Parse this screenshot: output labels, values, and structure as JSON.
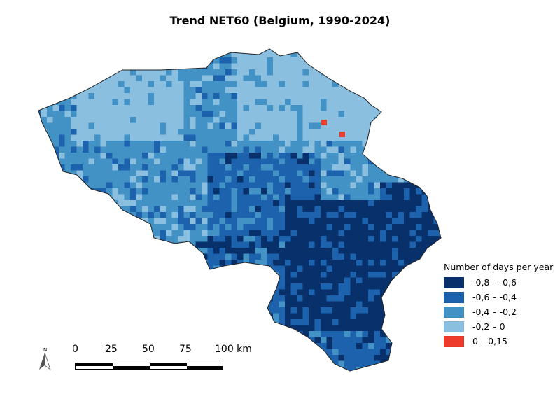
{
  "title": "Trend NET60 (Belgium, 1990-2024)",
  "legend": {
    "title": "Number of days per year",
    "items": [
      {
        "label": "-0,8 – -0,6",
        "color": "#08306b"
      },
      {
        "label": "-0,6 – -0,4",
        "color": "#1c62ad"
      },
      {
        "label": "-0,4 – -0,2",
        "color": "#4292c6"
      },
      {
        "label": "-0,2 – 0",
        "color": "#8abfe0"
      },
      {
        "label": "0 – 0,15",
        "color": "#ef3b2c"
      }
    ]
  },
  "scale_bar": {
    "ticks": [
      "0",
      "25",
      "50",
      "75",
      "100 km"
    ]
  },
  "north_arrow": {
    "label": "N"
  },
  "outline_color": "#222222"
}
